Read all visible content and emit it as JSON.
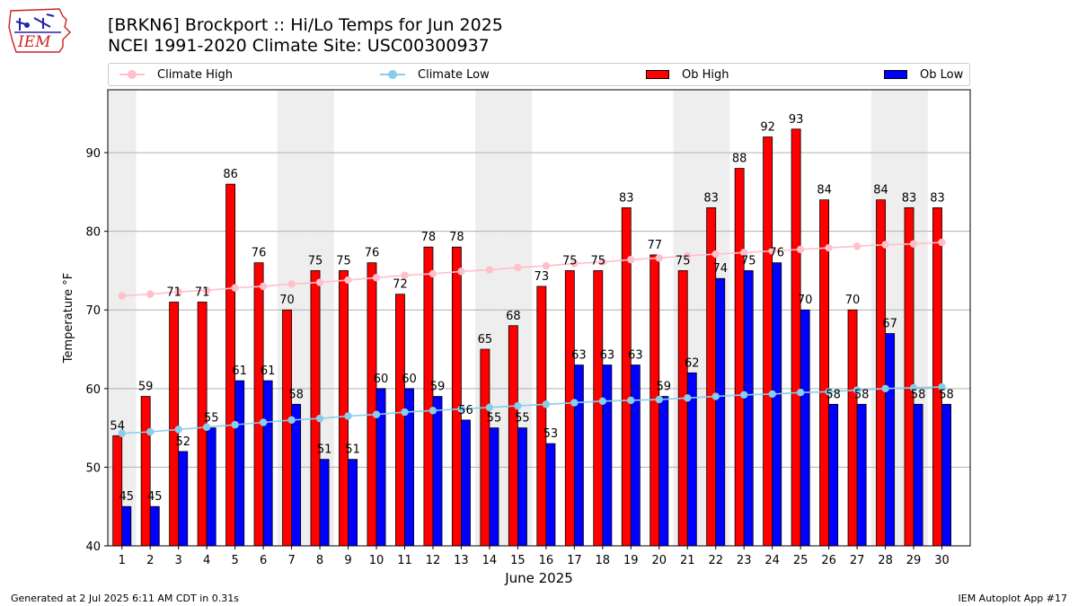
{
  "header": {
    "title_line1": "[BRKN6] Brockport :: Hi/Lo Temps for Jun 2025",
    "title_line2": "NCEI 1991-2020 Climate Site: USC00300937"
  },
  "logo": {
    "text": "IEM",
    "icon": "iowa-state-outline-icon"
  },
  "legend": {
    "climate_high": "Climate High",
    "climate_low": "Climate Low",
    "ob_high": "Ob High",
    "ob_low": "Ob Low"
  },
  "footer": {
    "left": "Generated at 2 Jul 2025 6:11 AM CDT in 0.31s",
    "right": "IEM Autoplot App #17"
  },
  "colors": {
    "ob_high": "#ff0000",
    "ob_low": "#0000ff",
    "climate_high": "#ffc0cb",
    "climate_low": "#87ceeb",
    "weekend_band": "#eeeeee",
    "grid": "#b0b0b0"
  },
  "chart_data": {
    "type": "bar",
    "title": "[BRKN6] Brockport :: Hi/Lo Temps for Jun 2025",
    "subtitle": "NCEI 1991-2020 Climate Site: USC00300937",
    "xlabel": "June 2025",
    "ylabel": "Temperature °F",
    "ylim": [
      40,
      98
    ],
    "yticks": [
      40,
      50,
      60,
      70,
      80,
      90
    ],
    "grid": true,
    "legend_position": "top",
    "categories": [
      "1",
      "2",
      "3",
      "4",
      "5",
      "6",
      "7",
      "8",
      "9",
      "10",
      "11",
      "12",
      "13",
      "14",
      "15",
      "16",
      "17",
      "18",
      "19",
      "20",
      "21",
      "22",
      "23",
      "24",
      "25",
      "26",
      "27",
      "28",
      "29",
      "30"
    ],
    "weekend_days": [
      1,
      7,
      8,
      14,
      15,
      21,
      22,
      28,
      29
    ],
    "series": [
      {
        "name": "Ob High",
        "kind": "bar",
        "values": [
          54,
          59,
          71,
          71,
          86,
          76,
          70,
          75,
          75,
          76,
          72,
          78,
          78,
          65,
          68,
          73,
          75,
          75,
          83,
          77,
          75,
          83,
          88,
          92,
          93,
          84,
          70,
          84,
          83,
          83
        ]
      },
      {
        "name": "Ob Low",
        "kind": "bar",
        "values": [
          45,
          45,
          52,
          55,
          61,
          61,
          58,
          51,
          51,
          60,
          60,
          59,
          56,
          55,
          55,
          53,
          63,
          63,
          63,
          59,
          62,
          74,
          75,
          76,
          70,
          58,
          58,
          67,
          58,
          58
        ]
      },
      {
        "name": "Climate High",
        "kind": "line",
        "values": [
          71.8,
          72.0,
          72.3,
          72.5,
          72.8,
          73.0,
          73.3,
          73.5,
          73.8,
          74.1,
          74.4,
          74.6,
          74.9,
          75.1,
          75.4,
          75.6,
          75.9,
          76.1,
          76.4,
          76.6,
          76.9,
          77.1,
          77.3,
          77.5,
          77.7,
          77.9,
          78.1,
          78.3,
          78.4,
          78.6
        ]
      },
      {
        "name": "Climate Low",
        "kind": "line",
        "values": [
          54.3,
          54.5,
          54.8,
          55.1,
          55.4,
          55.7,
          56.0,
          56.2,
          56.5,
          56.7,
          57.0,
          57.2,
          57.4,
          57.6,
          57.8,
          58.0,
          58.2,
          58.4,
          58.5,
          58.6,
          58.8,
          59.0,
          59.2,
          59.3,
          59.5,
          59.6,
          59.8,
          60.0,
          60.1,
          60.2
        ]
      }
    ]
  }
}
